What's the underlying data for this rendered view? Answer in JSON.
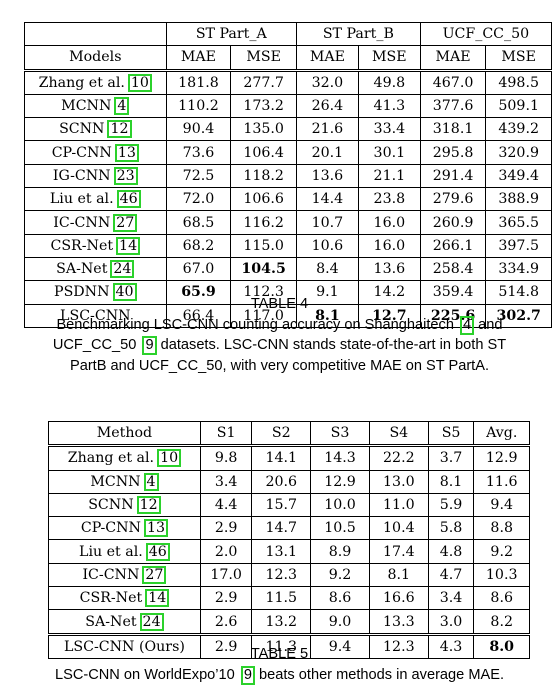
{
  "table4": {
    "group_headers": [
      "ST Part_A",
      "ST Part_B",
      "UCF_CC_50"
    ],
    "col_headers": [
      "Models",
      "MAE",
      "MSE",
      "MAE",
      "MSE",
      "MAE",
      "MSE"
    ],
    "rows": [
      {
        "name": "Zhang et al.",
        "cite": "10",
        "values": [
          "181.8",
          "277.7",
          "32.0",
          "49.8",
          "467.0",
          "498.5"
        ],
        "bold": []
      },
      {
        "name": "MCNN",
        "cite": "4",
        "values": [
          "110.2",
          "173.2",
          "26.4",
          "41.3",
          "377.6",
          "509.1"
        ],
        "bold": []
      },
      {
        "name": "SCNN",
        "cite": "12",
        "values": [
          "90.4",
          "135.0",
          "21.6",
          "33.4",
          "318.1",
          "439.2"
        ],
        "bold": []
      },
      {
        "name": "CP-CNN",
        "cite": "13",
        "values": [
          "73.6",
          "106.4",
          "20.1",
          "30.1",
          "295.8",
          "320.9"
        ],
        "bold": []
      },
      {
        "name": "IG-CNN",
        "cite": "23",
        "values": [
          "72.5",
          "118.2",
          "13.6",
          "21.1",
          "291.4",
          "349.4"
        ],
        "bold": []
      },
      {
        "name": "Liu et al.",
        "cite": "46",
        "values": [
          "72.0",
          "106.6",
          "14.4",
          "23.8",
          "279.6",
          "388.9"
        ],
        "bold": []
      },
      {
        "name": "IC-CNN",
        "cite": "27",
        "values": [
          "68.5",
          "116.2",
          "10.7",
          "16.0",
          "260.9",
          "365.5"
        ],
        "bold": []
      },
      {
        "name": "CSR-Net",
        "cite": "14",
        "values": [
          "68.2",
          "115.0",
          "10.6",
          "16.0",
          "266.1",
          "397.5"
        ],
        "bold": []
      },
      {
        "name": "SA-Net",
        "cite": "24",
        "values": [
          "67.0",
          "104.5",
          "8.4",
          "13.6",
          "258.4",
          "334.9"
        ],
        "bold": [
          1
        ]
      },
      {
        "name": "PSDNN",
        "cite": "40",
        "values": [
          "65.9",
          "112.3",
          "9.1",
          "14.2",
          "359.4",
          "514.8"
        ],
        "bold": [
          0
        ]
      },
      {
        "name": "LSC-CNN",
        "cite": "",
        "values": [
          "66.4",
          "117.0",
          "8.1",
          "12.7",
          "225.6",
          "302.7"
        ],
        "bold": [
          2,
          3,
          4,
          5
        ]
      }
    ],
    "caption_title": "TABLE 4",
    "caption_parts": [
      "Benchmarking LSC-CNN counting accuracy on Shanghaitech ",
      "4",
      " and",
      "UCF_CC_50 ",
      "9",
      " datasets. LSC-CNN stands state-of-the-art in both ST",
      "PartB and UCF_CC_50, with very competitive MAE on ST PartA."
    ]
  },
  "table5": {
    "col_headers": [
      "Method",
      "S1",
      "S2",
      "S3",
      "S4",
      "S5",
      "Avg."
    ],
    "rows": [
      {
        "name": "Zhang et al.",
        "cite": "10",
        "values": [
          "9.8",
          "14.1",
          "14.3",
          "22.2",
          "3.7",
          "12.9"
        ],
        "bold": []
      },
      {
        "name": "MCNN",
        "cite": "4",
        "values": [
          "3.4",
          "20.6",
          "12.9",
          "13.0",
          "8.1",
          "11.6"
        ],
        "bold": []
      },
      {
        "name": "SCNN",
        "cite": "12",
        "values": [
          "4.4",
          "15.7",
          "10.0",
          "11.0",
          "5.9",
          "9.4"
        ],
        "bold": []
      },
      {
        "name": "CP-CNN",
        "cite": "13",
        "values": [
          "2.9",
          "14.7",
          "10.5",
          "10.4",
          "5.8",
          "8.8"
        ],
        "bold": []
      },
      {
        "name": "Liu et al.",
        "cite": "46",
        "values": [
          "2.0",
          "13.1",
          "8.9",
          "17.4",
          "4.8",
          "9.2"
        ],
        "bold": []
      },
      {
        "name": "IC-CNN",
        "cite": "27",
        "values": [
          "17.0",
          "12.3",
          "9.2",
          "8.1",
          "4.7",
          "10.3"
        ],
        "bold": []
      },
      {
        "name": "CSR-Net",
        "cite": "14",
        "values": [
          "2.9",
          "11.5",
          "8.6",
          "16.6",
          "3.4",
          "8.6"
        ],
        "bold": []
      },
      {
        "name": "SA-Net",
        "cite": "24",
        "values": [
          "2.6",
          "13.2",
          "9.0",
          "13.3",
          "3.0",
          "8.2"
        ],
        "bold": []
      },
      {
        "name": "LSC-CNN (Ours)",
        "cite": "",
        "values": [
          "2.9",
          "11.3",
          "9.4",
          "12.3",
          "4.3",
          "8.0"
        ],
        "bold": [
          5
        ]
      }
    ],
    "caption_title": "TABLE 5",
    "caption_parts": [
      "LSC-CNN on WorldExpo’10 ",
      "9",
      " beats other methods in average MAE."
    ]
  }
}
